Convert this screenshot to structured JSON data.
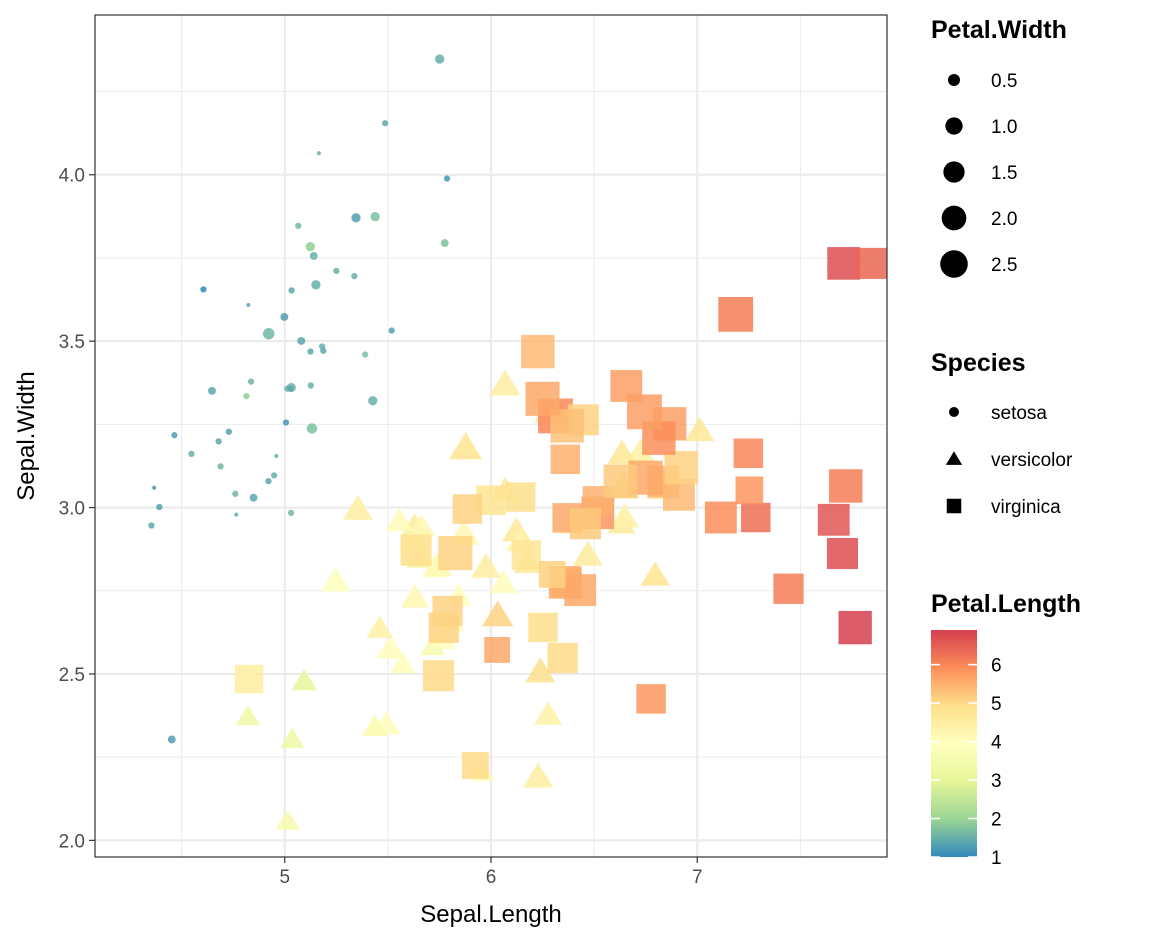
{
  "chart_data": {
    "type": "scatter",
    "xlabel": "Sepal.Length",
    "ylabel": "Sepal.Width",
    "xlim": [
      4.08,
      7.92
    ],
    "ylim": [
      1.95,
      4.48
    ],
    "x_ticks": [
      "5",
      "6",
      "7"
    ],
    "y_ticks": [
      "2.0",
      "2.5",
      "3.0",
      "3.5",
      "4.0"
    ],
    "grid": true,
    "jittered": true,
    "legend_position": "right",
    "size_legend": {
      "title": "Petal.Width",
      "labels": [
        "0.5",
        "1.0",
        "1.5",
        "2.0",
        "2.5"
      ]
    },
    "shape_legend": {
      "title": "Species",
      "labels": [
        "setosa",
        "versicolor",
        "virginica"
      ],
      "shapes": [
        "circle",
        "triangle",
        "square"
      ]
    },
    "color_legend": {
      "title": "Petal.Length",
      "labels": [
        "1",
        "2",
        "3",
        "4",
        "5",
        "6"
      ],
      "range": [
        1.0,
        6.9
      ],
      "palette": [
        "#3288BD",
        "#99D594",
        "#E6F598",
        "#FFFFBF",
        "#FEE08B",
        "#FC8D59",
        "#D53E4F"
      ]
    },
    "columns": [
      "Sepal.Length",
      "Sepal.Width",
      "Petal.Length",
      "Petal.Width",
      "Species"
    ],
    "points": [
      [
        5.1,
        3.5,
        1.4,
        0.2,
        "setosa"
      ],
      [
        4.9,
        3.0,
        1.4,
        0.2,
        "setosa"
      ],
      [
        4.7,
        3.2,
        1.3,
        0.2,
        "setosa"
      ],
      [
        4.6,
        3.1,
        1.5,
        0.2,
        "setosa"
      ],
      [
        5.0,
        3.6,
        1.4,
        0.2,
        "setosa"
      ],
      [
        5.4,
        3.9,
        1.7,
        0.4,
        "setosa"
      ],
      [
        4.6,
        3.4,
        1.4,
        0.3,
        "setosa"
      ],
      [
        5.0,
        3.4,
        1.5,
        0.2,
        "setosa"
      ],
      [
        4.4,
        2.9,
        1.4,
        0.2,
        "setosa"
      ],
      [
        4.9,
        3.1,
        1.5,
        0.1,
        "setosa"
      ],
      [
        5.4,
        3.7,
        1.5,
        0.2,
        "setosa"
      ],
      [
        4.8,
        3.4,
        1.6,
        0.2,
        "setosa"
      ],
      [
        4.8,
        3.0,
        1.4,
        0.1,
        "setosa"
      ],
      [
        4.3,
        3.0,
        1.1,
        0.1,
        "setosa"
      ],
      [
        5.8,
        4.0,
        1.2,
        0.2,
        "setosa"
      ],
      [
        5.7,
        4.4,
        1.5,
        0.4,
        "setosa"
      ],
      [
        5.4,
        3.9,
        1.3,
        0.4,
        "setosa"
      ],
      [
        5.1,
        3.5,
        1.4,
        0.3,
        "setosa"
      ],
      [
        5.7,
        3.8,
        1.7,
        0.3,
        "setosa"
      ],
      [
        5.1,
        3.8,
        1.5,
        0.3,
        "setosa"
      ],
      [
        5.4,
        3.4,
        1.7,
        0.2,
        "setosa"
      ],
      [
        5.1,
        3.7,
        1.5,
        0.4,
        "setosa"
      ],
      [
        4.6,
        3.6,
        1.0,
        0.2,
        "setosa"
      ],
      [
        5.1,
        3.3,
        1.7,
        0.5,
        "setosa"
      ],
      [
        4.8,
        3.4,
        1.9,
        0.2,
        "setosa"
      ],
      [
        5.0,
        3.0,
        1.6,
        0.2,
        "setosa"
      ],
      [
        5.0,
        3.4,
        1.6,
        0.4,
        "setosa"
      ],
      [
        5.2,
        3.5,
        1.5,
        0.2,
        "setosa"
      ],
      [
        5.2,
        3.4,
        1.4,
        0.2,
        "setosa"
      ],
      [
        4.7,
        3.2,
        1.6,
        0.2,
        "setosa"
      ],
      [
        4.8,
        3.1,
        1.6,
        0.2,
        "setosa"
      ],
      [
        5.4,
        3.4,
        1.5,
        0.4,
        "setosa"
      ],
      [
        5.2,
        4.1,
        1.5,
        0.1,
        "setosa"
      ],
      [
        5.5,
        4.2,
        1.4,
        0.2,
        "setosa"
      ],
      [
        4.9,
        3.1,
        1.5,
        0.2,
        "setosa"
      ],
      [
        5.0,
        3.2,
        1.2,
        0.2,
        "setosa"
      ],
      [
        5.5,
        3.5,
        1.3,
        0.2,
        "setosa"
      ],
      [
        4.9,
        3.6,
        1.4,
        0.1,
        "setosa"
      ],
      [
        4.4,
        3.0,
        1.3,
        0.2,
        "setosa"
      ],
      [
        5.1,
        3.4,
        1.5,
        0.2,
        "setosa"
      ],
      [
        5.0,
        3.5,
        1.3,
        0.3,
        "setosa"
      ],
      [
        4.5,
        2.3,
        1.3,
        0.3,
        "setosa"
      ],
      [
        4.4,
        3.2,
        1.3,
        0.2,
        "setosa"
      ],
      [
        5.0,
        3.5,
        1.6,
        0.6,
        "setosa"
      ],
      [
        5.1,
        3.8,
        1.9,
        0.4,
        "setosa"
      ],
      [
        4.8,
        3.0,
        1.4,
        0.3,
        "setosa"
      ],
      [
        5.1,
        3.8,
        1.6,
        0.2,
        "setosa"
      ],
      [
        4.6,
        3.2,
        1.4,
        0.2,
        "setosa"
      ],
      [
        5.3,
        3.7,
        1.5,
        0.2,
        "setosa"
      ],
      [
        5.0,
        3.3,
        1.4,
        0.2,
        "setosa"
      ],
      [
        7.0,
        3.2,
        4.7,
        1.4,
        "versicolor"
      ],
      [
        6.4,
        3.2,
        4.5,
        1.5,
        "versicolor"
      ],
      [
        6.9,
        3.1,
        4.9,
        1.5,
        "versicolor"
      ],
      [
        5.5,
        2.3,
        4.0,
        1.3,
        "versicolor"
      ],
      [
        6.5,
        2.8,
        4.6,
        1.5,
        "versicolor"
      ],
      [
        5.7,
        2.8,
        4.5,
        1.3,
        "versicolor"
      ],
      [
        6.3,
        3.3,
        4.7,
        1.6,
        "versicolor"
      ],
      [
        4.9,
        2.4,
        3.3,
        1.0,
        "versicolor"
      ],
      [
        6.6,
        2.9,
        4.6,
        1.3,
        "versicolor"
      ],
      [
        5.2,
        2.7,
        3.9,
        1.4,
        "versicolor"
      ],
      [
        5.0,
        2.0,
        3.5,
        1.0,
        "versicolor"
      ],
      [
        5.9,
        3.0,
        4.2,
        1.5,
        "versicolor"
      ],
      [
        6.0,
        2.2,
        4.0,
        1.0,
        "versicolor"
      ],
      [
        6.1,
        2.9,
        4.7,
        1.4,
        "versicolor"
      ],
      [
        5.6,
        2.9,
        3.6,
        1.3,
        "versicolor"
      ],
      [
        6.7,
        3.1,
        4.4,
        1.4,
        "versicolor"
      ],
      [
        5.6,
        3.0,
        4.5,
        1.5,
        "versicolor"
      ],
      [
        5.8,
        2.7,
        4.1,
        1.0,
        "versicolor"
      ],
      [
        6.2,
        2.2,
        4.5,
        1.5,
        "versicolor"
      ],
      [
        5.6,
        2.5,
        3.9,
        1.1,
        "versicolor"
      ],
      [
        5.9,
        3.2,
        4.8,
        1.8,
        "versicolor"
      ],
      [
        6.1,
        2.8,
        4.0,
        1.3,
        "versicolor"
      ],
      [
        6.3,
        2.5,
        4.9,
        1.5,
        "versicolor"
      ],
      [
        6.1,
        2.8,
        4.7,
        1.2,
        "versicolor"
      ],
      [
        6.4,
        2.9,
        4.3,
        1.3,
        "versicolor"
      ],
      [
        6.6,
        3.0,
        4.4,
        1.4,
        "versicolor"
      ],
      [
        6.8,
        2.8,
        4.8,
        1.4,
        "versicolor"
      ],
      [
        6.7,
        3.0,
        5.0,
        1.7,
        "versicolor"
      ],
      [
        6.0,
        2.9,
        4.5,
        1.5,
        "versicolor"
      ],
      [
        5.7,
        2.6,
        3.5,
        1.0,
        "versicolor"
      ],
      [
        5.5,
        2.4,
        3.8,
        1.1,
        "versicolor"
      ],
      [
        5.5,
        2.4,
        3.7,
        1.0,
        "versicolor"
      ],
      [
        5.8,
        2.7,
        3.9,
        1.2,
        "versicolor"
      ],
      [
        6.0,
        2.7,
        5.1,
        1.6,
        "versicolor"
      ],
      [
        5.4,
        3.0,
        4.5,
        1.5,
        "versicolor"
      ],
      [
        6.0,
        3.4,
        4.5,
        1.6,
        "versicolor"
      ],
      [
        6.7,
        3.1,
        4.7,
        1.5,
        "versicolor"
      ],
      [
        6.3,
        2.3,
        4.4,
        1.3,
        "versicolor"
      ],
      [
        5.6,
        3.0,
        4.1,
        1.3,
        "versicolor"
      ],
      [
        5.5,
        2.5,
        4.0,
        1.3,
        "versicolor"
      ],
      [
        5.5,
        2.6,
        4.4,
        1.2,
        "versicolor"
      ],
      [
        6.1,
        3.0,
        4.6,
        1.4,
        "versicolor"
      ],
      [
        5.8,
        2.6,
        4.0,
        1.2,
        "versicolor"
      ],
      [
        5.0,
        2.3,
        3.3,
        1.0,
        "versicolor"
      ],
      [
        5.6,
        2.7,
        4.2,
        1.3,
        "versicolor"
      ],
      [
        5.7,
        3.0,
        4.2,
        1.2,
        "versicolor"
      ],
      [
        5.7,
        2.9,
        4.2,
        1.3,
        "versicolor"
      ],
      [
        6.2,
        2.9,
        4.3,
        1.3,
        "versicolor"
      ],
      [
        5.1,
        2.5,
        3.0,
        1.1,
        "versicolor"
      ],
      [
        5.7,
        2.8,
        4.1,
        1.3,
        "versicolor"
      ],
      [
        6.3,
        3.3,
        6.0,
        2.5,
        "virginica"
      ],
      [
        5.8,
        2.7,
        5.1,
        1.9,
        "virginica"
      ],
      [
        7.1,
        3.0,
        5.9,
        2.1,
        "virginica"
      ],
      [
        6.3,
        2.9,
        5.6,
        1.8,
        "virginica"
      ],
      [
        6.5,
        3.0,
        5.8,
        2.2,
        "virginica"
      ],
      [
        7.6,
        3.0,
        6.6,
        2.1,
        "virginica"
      ],
      [
        4.9,
        2.5,
        4.5,
        1.7,
        "virginica"
      ],
      [
        7.3,
        2.9,
        6.3,
        1.8,
        "virginica"
      ],
      [
        6.7,
        2.5,
        5.8,
        1.8,
        "virginica"
      ],
      [
        7.2,
        3.6,
        6.1,
        2.5,
        "virginica"
      ],
      [
        6.5,
        3.2,
        5.1,
        2.0,
        "virginica"
      ],
      [
        6.4,
        2.7,
        5.3,
        1.9,
        "virginica"
      ],
      [
        6.8,
        3.0,
        5.5,
        2.1,
        "virginica"
      ],
      [
        5.7,
        2.5,
        5.0,
        2.0,
        "virginica"
      ],
      [
        5.8,
        2.8,
        5.1,
        2.4,
        "virginica"
      ],
      [
        6.4,
        3.2,
        5.3,
        2.3,
        "virginica"
      ],
      [
        6.5,
        3.0,
        5.5,
        1.8,
        "virginica"
      ],
      [
        7.7,
        3.8,
        6.7,
        2.2,
        "virginica"
      ],
      [
        7.7,
        2.6,
        6.9,
        2.3,
        "virginica"
      ],
      [
        6.0,
        2.2,
        5.0,
        1.5,
        "virginica"
      ],
      [
        6.9,
        3.2,
        5.7,
        2.3,
        "virginica"
      ],
      [
        5.6,
        2.8,
        4.9,
        2.0,
        "virginica"
      ],
      [
        7.7,
        2.8,
        6.7,
        2.0,
        "virginica"
      ],
      [
        6.3,
        2.7,
        4.9,
        1.8,
        "virginica"
      ],
      [
        6.7,
        3.3,
        5.7,
        2.1,
        "virginica"
      ],
      [
        7.2,
        3.2,
        6.0,
        1.8,
        "virginica"
      ],
      [
        6.2,
        2.8,
        4.8,
        1.8,
        "virginica"
      ],
      [
        6.1,
        3.0,
        4.9,
        1.8,
        "virginica"
      ],
      [
        6.4,
        2.8,
        5.6,
        2.1,
        "virginica"
      ],
      [
        7.2,
        3.0,
        5.8,
        1.6,
        "virginica"
      ],
      [
        7.4,
        2.8,
        6.1,
        1.9,
        "virginica"
      ],
      [
        7.9,
        3.8,
        6.4,
        2.0,
        "virginica"
      ],
      [
        6.4,
        2.8,
        5.6,
        2.2,
        "virginica"
      ],
      [
        6.3,
        2.8,
        5.1,
        1.5,
        "virginica"
      ],
      [
        6.1,
        2.6,
        5.6,
        1.4,
        "virginica"
      ],
      [
        7.7,
        3.0,
        6.1,
        2.3,
        "virginica"
      ],
      [
        6.3,
        3.4,
        5.6,
        2.4,
        "virginica"
      ],
      [
        6.4,
        3.1,
        5.5,
        1.8,
        "virginica"
      ],
      [
        6.0,
        3.0,
        4.8,
        1.8,
        "virginica"
      ],
      [
        6.9,
        3.1,
        5.4,
        2.1,
        "virginica"
      ],
      [
        6.7,
        3.1,
        5.6,
        2.4,
        "virginica"
      ],
      [
        6.9,
        3.1,
        5.1,
        2.3,
        "virginica"
      ],
      [
        5.8,
        2.7,
        5.1,
        1.9,
        "virginica"
      ],
      [
        6.8,
        3.2,
        5.9,
        2.3,
        "virginica"
      ],
      [
        6.7,
        3.3,
        5.7,
        2.5,
        "virginica"
      ],
      [
        6.7,
        3.0,
        5.2,
        2.3,
        "virginica"
      ],
      [
        6.3,
        2.5,
        5.0,
        1.9,
        "virginica"
      ],
      [
        6.5,
        3.0,
        5.2,
        2.0,
        "virginica"
      ],
      [
        6.2,
        3.4,
        5.4,
        2.3,
        "virginica"
      ],
      [
        5.9,
        3.0,
        5.1,
        1.8,
        "virginica"
      ]
    ]
  }
}
